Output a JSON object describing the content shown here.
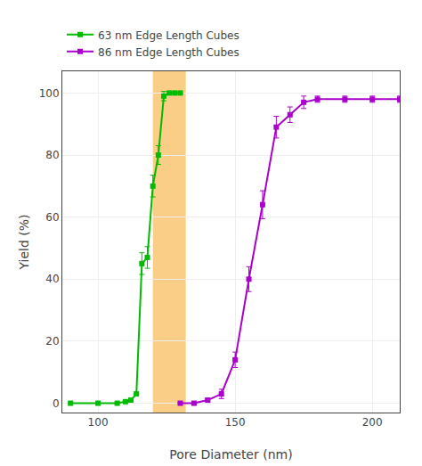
{
  "chart_data": {
    "type": "line",
    "xlabel": "Pore Diameter (nm)",
    "ylabel": "Yield (%)",
    "xlim": [
      87,
      210
    ],
    "ylim": [
      -3,
      107
    ],
    "xticks": [
      100,
      150,
      200
    ],
    "yticks": [
      0,
      20,
      40,
      60,
      80,
      100
    ],
    "legend": "upper left",
    "marker": "square",
    "series": [
      {
        "name": "63 nm Edge Length Cubes",
        "color": "#00bb00",
        "x": [
          90,
          100,
          107,
          110,
          112,
          114,
          116,
          118,
          120,
          122,
          124,
          126,
          128,
          130
        ],
        "values": [
          0,
          0,
          0,
          0.5,
          1,
          3,
          45,
          47,
          70,
          80,
          99,
          100,
          100,
          100
        ],
        "errors": [
          0,
          0,
          0,
          0,
          0,
          0,
          3.5,
          3.5,
          3.5,
          3,
          1.5,
          0,
          0,
          0
        ]
      },
      {
        "name": "86 nm Edge Length Cubes",
        "color": "#aa00cc",
        "x": [
          130,
          135,
          140,
          145,
          150,
          155,
          160,
          165,
          170,
          175,
          180,
          190,
          200,
          210
        ],
        "values": [
          0,
          0,
          1,
          3,
          14,
          40,
          64,
          89,
          93,
          97,
          98,
          98,
          98,
          98
        ],
        "errors": [
          0,
          0,
          0.5,
          1.5,
          2.5,
          4,
          4.5,
          3.5,
          2.5,
          2,
          1,
          1,
          1,
          1
        ]
      }
    ],
    "band": {
      "x": [
        120,
        132
      ],
      "color": "#f5a623"
    }
  }
}
